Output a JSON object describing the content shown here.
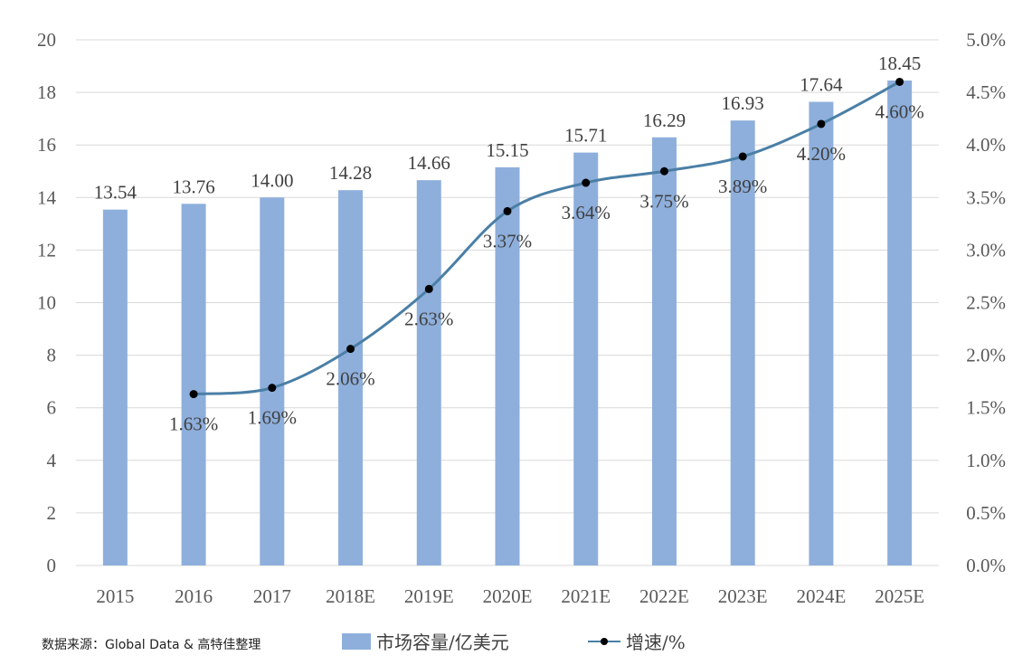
{
  "chart_data": {
    "type": "bar",
    "categories": [
      "2015",
      "2016",
      "2017",
      "2018E",
      "2019E",
      "2020E",
      "2021E",
      "2022E",
      "2023E",
      "2024E",
      "2025E"
    ],
    "series": [
      {
        "name": "市场容量/亿美元",
        "type": "bar",
        "axis": "left",
        "values": [
          13.54,
          13.76,
          14.0,
          14.28,
          14.66,
          15.15,
          15.71,
          16.29,
          16.93,
          17.64,
          18.45
        ],
        "labels": [
          "13.54",
          "13.76",
          "14.00",
          "14.28",
          "14.66",
          "15.15",
          "15.71",
          "16.29",
          "16.93",
          "17.64",
          "18.45"
        ],
        "color": "#8eafdc"
      },
      {
        "name": "增速/%",
        "type": "line",
        "axis": "right",
        "values": [
          null,
          1.63,
          1.69,
          2.06,
          2.63,
          3.37,
          3.64,
          3.75,
          3.89,
          4.2,
          4.6
        ],
        "labels": [
          "",
          "1.63%",
          "1.69%",
          "2.06%",
          "2.63%",
          "3.37%",
          "3.64%",
          "3.75%",
          "3.89%",
          "4.20%",
          "4.60%"
        ],
        "color": "#4a7fa6",
        "marker_color": "#000000"
      }
    ],
    "ylim": [
      0,
      20
    ],
    "y_ticks": [
      "0",
      "2",
      "4",
      "6",
      "8",
      "10",
      "12",
      "14",
      "16",
      "18",
      "20"
    ],
    "y2lim": [
      0,
      5
    ],
    "y2_ticks": [
      "0.0%",
      "0.5%",
      "1.0%",
      "1.5%",
      "2.0%",
      "2.5%",
      "3.0%",
      "3.5%",
      "4.0%",
      "4.5%",
      "5.0%"
    ],
    "grid": true,
    "legend_position": "bottom"
  },
  "source": "数据来源：Global Data & 高特佳整理"
}
